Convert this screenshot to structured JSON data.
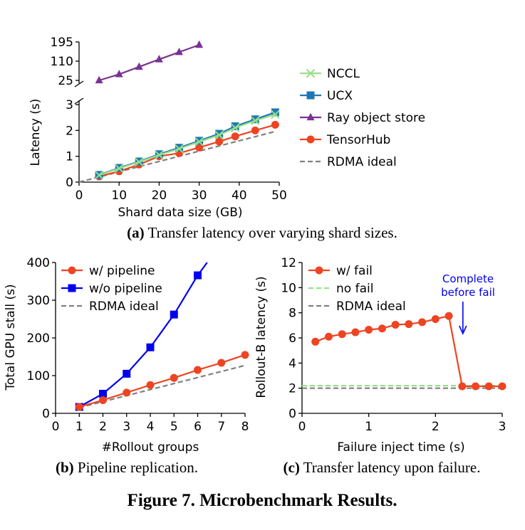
{
  "figure_title": "Figure 7. Microbenchmark Results.",
  "chart_data": [
    {
      "id": "a",
      "type": "line",
      "caption_label": "(a)",
      "caption_text": "Transfer latency over varying shard sizes.",
      "xlabel": "Shard data size (GB)",
      "ylabel": "Latency (s)",
      "xlim": [
        0,
        50
      ],
      "xticks": [
        "0",
        "10",
        "20",
        "30",
        "40",
        "50"
      ],
      "ylim_lower": [
        0,
        3
      ],
      "yticks_lower": [
        "0",
        "1",
        "2",
        "3"
      ],
      "yticks_upper": [
        "25",
        "110",
        "195"
      ],
      "broken_y_axis": true,
      "legend_position": "right",
      "series": [
        {
          "name": "NCCL",
          "color": "#98df8a",
          "marker": "x",
          "x": [
            5,
            10,
            15,
            20,
            25,
            30,
            35,
            39,
            44,
            49
          ],
          "y": [
            0.27,
            0.53,
            0.78,
            1.05,
            1.29,
            1.56,
            1.82,
            2.1,
            2.38,
            2.62
          ]
        },
        {
          "name": "UCX",
          "color": "#1f77b4",
          "marker": "square",
          "x": [
            5,
            10,
            15,
            20,
            25,
            30,
            35,
            39,
            44,
            49
          ],
          "y": [
            0.28,
            0.55,
            0.8,
            1.08,
            1.33,
            1.6,
            1.87,
            2.16,
            2.43,
            2.7
          ]
        },
        {
          "name": "Ray object store",
          "color": "#7b3294",
          "marker": "triangle",
          "x": [
            5,
            10,
            15,
            20,
            25,
            30
          ],
          "y": [
            25,
            52,
            85,
            118,
            150,
            182
          ]
        },
        {
          "name": "TensorHub",
          "color": "#ee4422",
          "marker": "circle",
          "x": [
            5,
            10,
            15,
            20,
            25,
            30,
            35,
            39,
            44,
            49
          ],
          "y": [
            0.22,
            0.42,
            0.68,
            1.0,
            1.12,
            1.34,
            1.57,
            1.77,
            2.0,
            2.22
          ]
        },
        {
          "name": "RDMA ideal",
          "color": "#808080",
          "marker": "dashed",
          "x": [
            0,
            49
          ],
          "y": [
            0,
            1.96
          ]
        }
      ]
    },
    {
      "id": "b",
      "type": "line",
      "caption_label": "(b)",
      "caption_text": "Pipeline replication.",
      "xlabel": "#Rollout groups",
      "ylabel": "Total GPU stall (s)",
      "xlim": [
        0,
        8
      ],
      "ylim": [
        0,
        400
      ],
      "xticks": [
        "0",
        "1",
        "2",
        "3",
        "4",
        "5",
        "6",
        "7",
        "8"
      ],
      "yticks": [
        "0",
        "100",
        "200",
        "300",
        "400"
      ],
      "legend_position": "top-left",
      "series": [
        {
          "name": "w/ pipeline",
          "color": "#ee4422",
          "marker": "circle",
          "x": [
            1,
            2,
            3,
            4,
            5,
            6,
            7,
            8
          ],
          "y": [
            17,
            35,
            55,
            75,
            94,
            115,
            134,
            155
          ]
        },
        {
          "name": "w/o pipeline",
          "color": "#0000ee",
          "marker": "square",
          "x": [
            1,
            2,
            3,
            4,
            5,
            6,
            6.4
          ],
          "y": [
            17,
            52,
            105,
            175,
            262,
            366,
            400
          ]
        },
        {
          "name": "RDMA ideal",
          "color": "#808080",
          "marker": "dashed",
          "x": [
            1,
            8
          ],
          "y": [
            15,
            127
          ]
        }
      ]
    },
    {
      "id": "c",
      "type": "line",
      "caption_label": "(c)",
      "caption_text": "Transfer latency upon failure.",
      "xlabel": "Failure inject time (s)",
      "ylabel": "Rollout-B latency (s)",
      "xlim": [
        0,
        3
      ],
      "ylim": [
        0,
        12
      ],
      "xticks": [
        "0",
        "1",
        "2",
        "3"
      ],
      "yticks": [
        "0",
        "2",
        "4",
        "6",
        "8",
        "10",
        "12"
      ],
      "legend_position": "top-left",
      "annotation": {
        "text_line1": "Complete",
        "text_line2": "before fail",
        "color": "#0000ee",
        "arrow_x": 2.4
      },
      "series": [
        {
          "name": "w/ fail",
          "color": "#ee4422",
          "marker": "circle",
          "x": [
            0.2,
            0.4,
            0.6,
            0.8,
            1.0,
            1.2,
            1.4,
            1.6,
            1.8,
            2.0,
            2.2,
            2.4,
            2.6,
            2.8,
            3.0
          ],
          "y": [
            5.7,
            6.1,
            6.3,
            6.45,
            6.65,
            6.75,
            7.05,
            7.1,
            7.25,
            7.5,
            7.75,
            2.15,
            2.15,
            2.15,
            2.15
          ]
        },
        {
          "name": "no fail",
          "color": "#98df8a",
          "marker": "dashed",
          "x": [
            0,
            3
          ],
          "y": [
            2.2,
            2.2
          ]
        },
        {
          "name": "RDMA ideal",
          "color": "#808080",
          "marker": "dashed",
          "x": [
            0,
            3
          ],
          "y": [
            2.0,
            2.0
          ]
        }
      ]
    }
  ]
}
